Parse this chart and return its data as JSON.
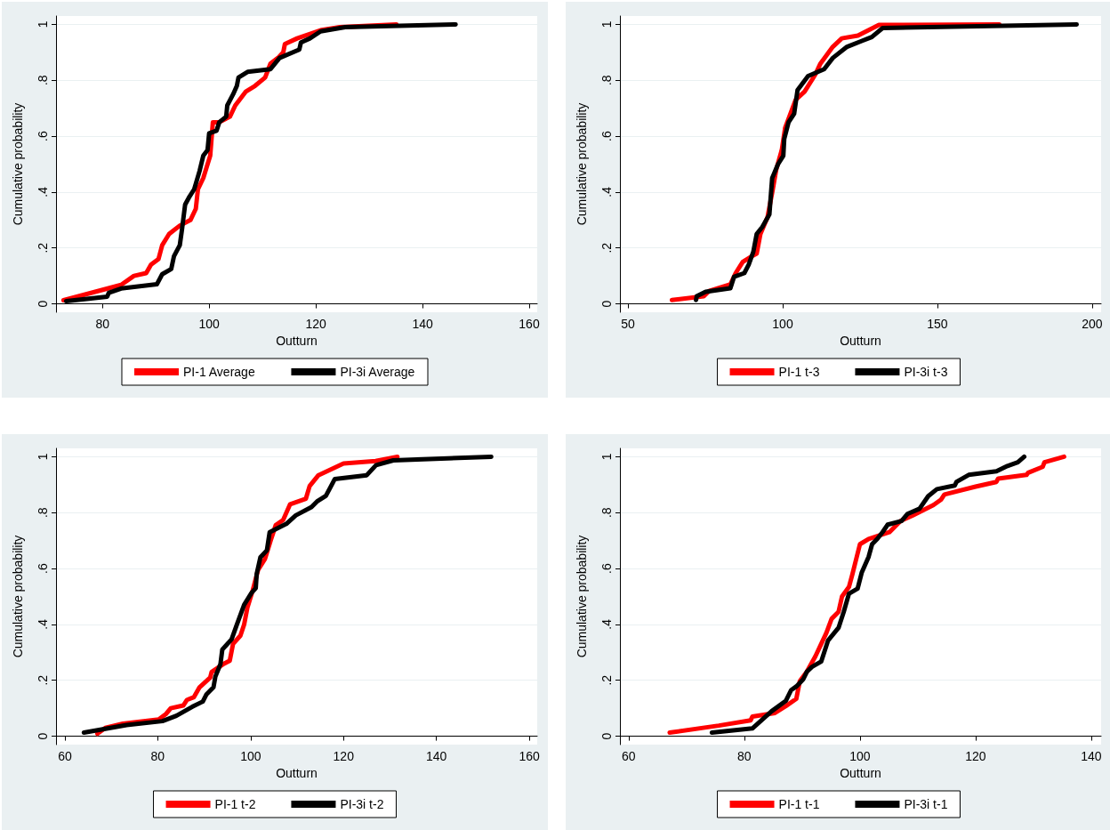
{
  "chart_data": [
    {
      "type": "line",
      "xlabel": "Outturn",
      "ylabel": "Cumulative probability",
      "xlim": [
        71.3,
        161.5
      ],
      "xticks": [
        80,
        100,
        120,
        140,
        160
      ],
      "ylim": [
        -0.03,
        1.03
      ],
      "yticks": [
        {
          "value": 0,
          "label": "0"
        },
        {
          "value": 0.2,
          "label": ".2"
        },
        {
          "value": 0.4,
          "label": ".4"
        },
        {
          "value": 0.6,
          "label": ".6"
        },
        {
          "value": 0.8,
          "label": ".8"
        },
        {
          "value": 1,
          "label": "1"
        }
      ],
      "grid": "y",
      "legend": "bottom",
      "marker": "none",
      "line_style": "solid",
      "series": [
        {
          "name": "PI-1 Average",
          "color": "#ff0000",
          "x": [
            72.7,
            83.5,
            85.9,
            88.2,
            89.1,
            90.5,
            91.2,
            92.5,
            94.5,
            96.5,
            97.5,
            97.9,
            98.9,
            100.2,
            100.7,
            101.9,
            103.9,
            104.9,
            106.9,
            108.6,
            110.5,
            111.5,
            112.9,
            113.9,
            114.2,
            116.5,
            121.1,
            124.5,
            135.1
          ],
          "values": [
            0.013,
            0.068,
            0.1,
            0.11,
            0.14,
            0.16,
            0.21,
            0.25,
            0.28,
            0.3,
            0.34,
            0.41,
            0.45,
            0.53,
            0.65,
            0.65,
            0.67,
            0.71,
            0.76,
            0.78,
            0.81,
            0.86,
            0.88,
            0.9,
            0.93,
            0.95,
            0.98,
            0.99,
            1.0
          ]
        },
        {
          "name": "PI-3i Average",
          "color": "#000000",
          "x": [
            73.2,
            80.9,
            81.2,
            83.5,
            90.2,
            91.2,
            92.9,
            93.4,
            94.5,
            94.9,
            95.5,
            96.2,
            97.2,
            98.2,
            98.9,
            99.7,
            100.0,
            101.4,
            101.9,
            103.2,
            103.4,
            104.5,
            105.2,
            105.5,
            107.2,
            111.5,
            113.2,
            116.9,
            117.2,
            118.9,
            120.9,
            125.5,
            146.2
          ],
          "values": [
            0.01,
            0.026,
            0.04,
            0.055,
            0.07,
            0.106,
            0.125,
            0.17,
            0.21,
            0.265,
            0.355,
            0.38,
            0.41,
            0.475,
            0.53,
            0.55,
            0.61,
            0.62,
            0.65,
            0.67,
            0.71,
            0.75,
            0.78,
            0.81,
            0.83,
            0.84,
            0.88,
            0.91,
            0.935,
            0.95,
            0.975,
            0.99,
            1.0
          ]
        }
      ]
    },
    {
      "type": "line",
      "xlabel": "Outturn",
      "ylabel": "Cumulative probability",
      "xlim": [
        47.4,
        202.9
      ],
      "xticks": [
        50,
        100,
        150,
        200
      ],
      "ylim": [
        -0.03,
        1.03
      ],
      "yticks": [
        {
          "value": 0,
          "label": "0"
        },
        {
          "value": 0.2,
          "label": ".2"
        },
        {
          "value": 0.4,
          "label": ".4"
        },
        {
          "value": 0.6,
          "label": ".6"
        },
        {
          "value": 0.8,
          "label": ".8"
        },
        {
          "value": 1,
          "label": "1"
        }
      ],
      "grid": "y",
      "legend": "bottom",
      "marker": "none",
      "line_style": "solid",
      "series": [
        {
          "name": "PI-1 t-3",
          "color": "#ff0000",
          "x": [
            64.2,
            74.5,
            76.2,
            83.1,
            84.8,
            87.1,
            90.0,
            91.6,
            92.8,
            95.1,
            96.8,
            97.9,
            99.7,
            100.8,
            102.5,
            104.2,
            107.1,
            110.5,
            112.2,
            116.2,
            119.1,
            124.3,
            131.1,
            170.0
          ],
          "values": [
            0.014,
            0.027,
            0.046,
            0.07,
            0.11,
            0.15,
            0.17,
            0.18,
            0.25,
            0.31,
            0.41,
            0.48,
            0.55,
            0.63,
            0.68,
            0.73,
            0.76,
            0.82,
            0.86,
            0.92,
            0.95,
            0.96,
            0.998,
            1.0
          ]
        },
        {
          "name": "PI-3i t-3",
          "color": "#000000",
          "x": [
            72.0,
            72.2,
            75.1,
            83.1,
            84.3,
            87.6,
            89.0,
            90.5,
            91.6,
            93.4,
            95.7,
            96.6,
            98.5,
            100.2,
            100.5,
            101.9,
            103.7,
            104.8,
            108.2,
            113.4,
            116.2,
            120.8,
            125.4,
            128.8,
            132.3,
            195.0
          ],
          "values": [
            0.014,
            0.027,
            0.043,
            0.056,
            0.097,
            0.11,
            0.14,
            0.186,
            0.25,
            0.275,
            0.32,
            0.45,
            0.5,
            0.53,
            0.59,
            0.65,
            0.68,
            0.765,
            0.815,
            0.84,
            0.88,
            0.92,
            0.94,
            0.955,
            0.987,
            1.0
          ]
        }
      ]
    },
    {
      "type": "line",
      "xlabel": "Outturn",
      "ylabel": "Cumulative probability",
      "xlim": [
        58.1,
        161.7
      ],
      "xticks": [
        60,
        80,
        100,
        120,
        140,
        160
      ],
      "ylim": [
        -0.03,
        1.03
      ],
      "yticks": [
        {
          "value": 0,
          "label": "0"
        },
        {
          "value": 0.2,
          "label": ".2"
        },
        {
          "value": 0.4,
          "label": ".4"
        },
        {
          "value": 0.6,
          "label": ".6"
        },
        {
          "value": 0.8,
          "label": ".8"
        },
        {
          "value": 1,
          "label": "1"
        }
      ],
      "grid": "y",
      "legend": "bottom",
      "marker": "none",
      "line_style": "solid",
      "series": [
        {
          "name": "PI-1 t-2",
          "color": "#ff0000",
          "x": [
            67.0,
            68.7,
            72.5,
            80.2,
            81.8,
            82.8,
            85.5,
            86.3,
            87.8,
            89.0,
            91.3,
            91.6,
            94.3,
            95.5,
            96.2,
            97.8,
            98.6,
            99.3,
            100.5,
            101.6,
            103.1,
            104.3,
            105.4,
            107.0,
            108.5,
            111.9,
            112.7,
            114.6,
            120.0,
            126.9,
            131.6
          ],
          "values": [
            0.009,
            0.03,
            0.045,
            0.06,
            0.08,
            0.1,
            0.11,
            0.13,
            0.14,
            0.175,
            0.21,
            0.23,
            0.26,
            0.27,
            0.33,
            0.36,
            0.4,
            0.46,
            0.525,
            0.595,
            0.635,
            0.7,
            0.755,
            0.774,
            0.83,
            0.85,
            0.895,
            0.934,
            0.976,
            0.985,
            1.0
          ]
        },
        {
          "name": "PI-3i t-2",
          "color": "#000000",
          "x": [
            64.1,
            67.9,
            73.3,
            81.0,
            84.0,
            87.4,
            89.7,
            90.5,
            92.0,
            92.4,
            93.5,
            93.9,
            95.9,
            97.0,
            98.6,
            100.2,
            101.1,
            101.3,
            102.1,
            103.5,
            104.1,
            107.7,
            109.7,
            113.1,
            114.3,
            116.2,
            118.1,
            125.0,
            127.0,
            130.7,
            151.8
          ],
          "values": [
            0.013,
            0.024,
            0.04,
            0.054,
            0.073,
            0.105,
            0.124,
            0.15,
            0.175,
            0.213,
            0.258,
            0.31,
            0.347,
            0.398,
            0.47,
            0.513,
            0.53,
            0.58,
            0.64,
            0.665,
            0.73,
            0.76,
            0.79,
            0.82,
            0.84,
            0.86,
            0.92,
            0.934,
            0.97,
            0.987,
            1.0
          ]
        }
      ]
    },
    {
      "type": "line",
      "xlabel": "Outturn",
      "ylabel": "Cumulative probability",
      "xlim": [
        58.5,
        141.7
      ],
      "xticks": [
        60,
        80,
        100,
        120,
        140
      ],
      "ylim": [
        -0.03,
        1.03
      ],
      "yticks": [
        {
          "value": 0,
          "label": "0"
        },
        {
          "value": 0.2,
          "label": ".2"
        },
        {
          "value": 0.4,
          "label": ".4"
        },
        {
          "value": 0.6,
          "label": ".6"
        },
        {
          "value": 0.8,
          "label": ".8"
        },
        {
          "value": 1,
          "label": "1"
        }
      ],
      "grid": "y",
      "legend": "bottom",
      "marker": "none",
      "line_style": "solid",
      "series": [
        {
          "name": "PI-1 t-1",
          "color": "#ff0000",
          "x": [
            67.1,
            75.6,
            81.1,
            81.4,
            85.3,
            87.2,
            89.0,
            89.6,
            90.8,
            92.3,
            93.3,
            94.2,
            95.1,
            96.3,
            96.9,
            98.1,
            98.7,
            100.0,
            101.5,
            105.1,
            107.0,
            109.1,
            112.7,
            114.0,
            114.6,
            120.0,
            123.6,
            123.9,
            128.8,
            129.1,
            131.6,
            131.9,
            135.3
          ],
          "values": [
            0.013,
            0.038,
            0.057,
            0.07,
            0.083,
            0.108,
            0.134,
            0.197,
            0.23,
            0.286,
            0.33,
            0.37,
            0.42,
            0.445,
            0.5,
            0.534,
            0.58,
            0.687,
            0.706,
            0.73,
            0.77,
            0.79,
            0.827,
            0.846,
            0.865,
            0.893,
            0.91,
            0.922,
            0.935,
            0.943,
            0.964,
            0.98,
            1.0
          ]
        },
        {
          "name": "PI-3i t-1",
          "color": "#000000",
          "x": [
            74.4,
            81.4,
            84.7,
            87.2,
            88.1,
            89.0,
            90.2,
            90.8,
            91.7,
            93.3,
            94.5,
            96.3,
            97.2,
            98.1,
            99.6,
            100.3,
            101.5,
            102.1,
            103.0,
            103.9,
            104.8,
            107.2,
            108.2,
            110.3,
            111.8,
            113.3,
            116.4,
            116.7,
            118.8,
            123.6,
            125.5,
            127.3,
            128.4
          ],
          "values": [
            0.013,
            0.028,
            0.089,
            0.127,
            0.165,
            0.178,
            0.204,
            0.23,
            0.248,
            0.267,
            0.343,
            0.388,
            0.445,
            0.51,
            0.528,
            0.585,
            0.642,
            0.687,
            0.706,
            0.73,
            0.757,
            0.77,
            0.795,
            0.814,
            0.859,
            0.884,
            0.897,
            0.91,
            0.935,
            0.948,
            0.967,
            0.98,
            1.0
          ]
        }
      ]
    }
  ]
}
